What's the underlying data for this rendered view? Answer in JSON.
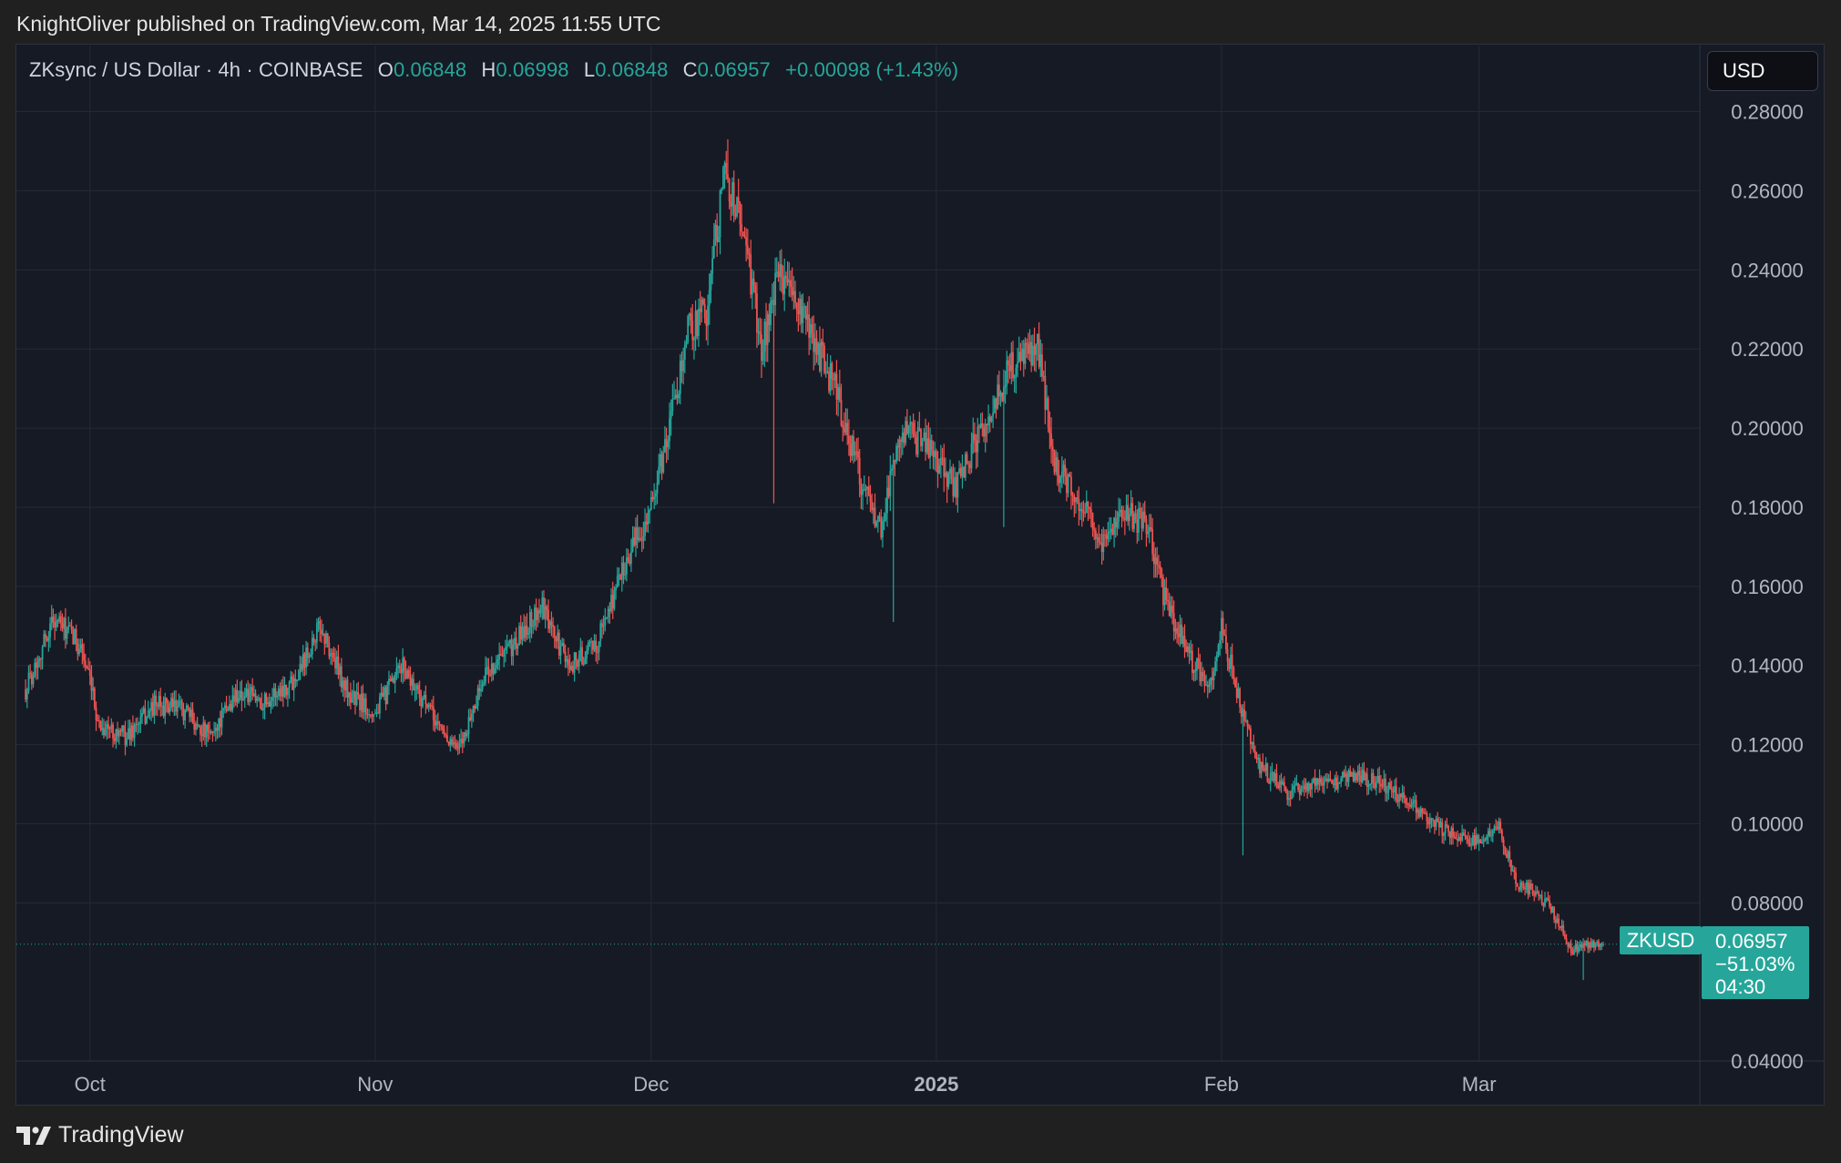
{
  "header": {
    "published_text": "KnightOliver published on TradingView.com, Mar 14, 2025 11:55 UTC"
  },
  "legend": {
    "symbol_text": "ZKsync / US Dollar · 4h · COINBASE",
    "open_key": "O",
    "open": "0.06848",
    "high_key": "H",
    "high": "0.06998",
    "low_key": "L",
    "low": "0.06848",
    "close_key": "C",
    "close": "0.06957",
    "change": "+0.00098 (+1.43%)"
  },
  "currency_button": "USD",
  "last_price": {
    "symbol": "ZKUSD",
    "price": "0.06957",
    "change_pct": "−51.03%",
    "countdown": "04:30"
  },
  "footer": {
    "brand": "TradingView"
  },
  "colors": {
    "up": "#26a69a",
    "down": "#ef5350",
    "background": "#161a25",
    "grid": "#242a35",
    "text": "#b2b5be"
  },
  "chart_data": {
    "type": "candlestick",
    "timeframe": "4h",
    "y_ticks": [
      "0.28000",
      "0.26000",
      "0.24000",
      "0.22000",
      "0.20000",
      "0.18000",
      "0.16000",
      "0.14000",
      "0.12000",
      "0.10000",
      "0.08000",
      "0.04000"
    ],
    "x_ticks": [
      "Oct",
      "Nov",
      "Dec",
      "2025",
      "Feb",
      "Mar"
    ],
    "x_tick_dates": [
      "2024-10-01",
      "2024-11-01",
      "2024-12-01",
      "2025-01-01",
      "2025-02-01",
      "2025-03-01"
    ],
    "x_range": [
      "2024-09-23",
      "2025-03-25"
    ],
    "ylim": [
      0.0405,
      0.2845
    ],
    "approximate_price_path": [
      {
        "date": "2024-09-24",
        "price": 0.134
      },
      {
        "date": "2024-09-27",
        "price": 0.152
      },
      {
        "date": "2024-09-30",
        "price": 0.145
      },
      {
        "date": "2024-10-02",
        "price": 0.125
      },
      {
        "date": "2024-10-05",
        "price": 0.122
      },
      {
        "date": "2024-10-08",
        "price": 0.13
      },
      {
        "date": "2024-10-11",
        "price": 0.129
      },
      {
        "date": "2024-10-14",
        "price": 0.122
      },
      {
        "date": "2024-10-17",
        "price": 0.133
      },
      {
        "date": "2024-10-20",
        "price": 0.131
      },
      {
        "date": "2024-10-23",
        "price": 0.136
      },
      {
        "date": "2024-10-26",
        "price": 0.15
      },
      {
        "date": "2024-10-29",
        "price": 0.133
      },
      {
        "date": "2024-11-01",
        "price": 0.128
      },
      {
        "date": "2024-11-04",
        "price": 0.14
      },
      {
        "date": "2024-11-07",
        "price": 0.128
      },
      {
        "date": "2024-11-10",
        "price": 0.118
      },
      {
        "date": "2024-11-13",
        "price": 0.138
      },
      {
        "date": "2024-11-16",
        "price": 0.145
      },
      {
        "date": "2024-11-19",
        "price": 0.155
      },
      {
        "date": "2024-11-22",
        "price": 0.14
      },
      {
        "date": "2024-11-25",
        "price": 0.145
      },
      {
        "date": "2024-11-28",
        "price": 0.165
      },
      {
        "date": "2024-12-01",
        "price": 0.18
      },
      {
        "date": "2024-12-03",
        "price": 0.2
      },
      {
        "date": "2024-12-05",
        "price": 0.225
      },
      {
        "date": "2024-12-07",
        "price": 0.23
      },
      {
        "date": "2024-12-09",
        "price": 0.265
      },
      {
        "date": "2024-12-11",
        "price": 0.25
      },
      {
        "date": "2024-12-13",
        "price": 0.22
      },
      {
        "date": "2024-12-15",
        "price": 0.24
      },
      {
        "date": "2024-12-18",
        "price": 0.225
      },
      {
        "date": "2024-12-21",
        "price": 0.21
      },
      {
        "date": "2024-12-24",
        "price": 0.185
      },
      {
        "date": "2024-12-26",
        "price": 0.175
      },
      {
        "date": "2024-12-28",
        "price": 0.2
      },
      {
        "date": "2024-12-31",
        "price": 0.195
      },
      {
        "date": "2025-01-03",
        "price": 0.185
      },
      {
        "date": "2025-01-06",
        "price": 0.2
      },
      {
        "date": "2025-01-09",
        "price": 0.215
      },
      {
        "date": "2025-01-12",
        "price": 0.22
      },
      {
        "date": "2025-01-14",
        "price": 0.19
      },
      {
        "date": "2025-01-17",
        "price": 0.18
      },
      {
        "date": "2025-01-19",
        "price": 0.17
      },
      {
        "date": "2025-01-21",
        "price": 0.18
      },
      {
        "date": "2025-01-24",
        "price": 0.175
      },
      {
        "date": "2025-01-26",
        "price": 0.155
      },
      {
        "date": "2025-01-29",
        "price": 0.14
      },
      {
        "date": "2025-01-31",
        "price": 0.135
      },
      {
        "date": "2025-02-01",
        "price": 0.15
      },
      {
        "date": "2025-02-03",
        "price": 0.13
      },
      {
        "date": "2025-02-05",
        "price": 0.115
      },
      {
        "date": "2025-02-08",
        "price": 0.108
      },
      {
        "date": "2025-02-12",
        "price": 0.11
      },
      {
        "date": "2025-02-16",
        "price": 0.112
      },
      {
        "date": "2025-02-20",
        "price": 0.108
      },
      {
        "date": "2025-02-24",
        "price": 0.1
      },
      {
        "date": "2025-02-28",
        "price": 0.095
      },
      {
        "date": "2025-03-03",
        "price": 0.1
      },
      {
        "date": "2025-03-05",
        "price": 0.085
      },
      {
        "date": "2025-03-07",
        "price": 0.083
      },
      {
        "date": "2025-03-09",
        "price": 0.078
      },
      {
        "date": "2025-03-11",
        "price": 0.068
      },
      {
        "date": "2025-03-13",
        "price": 0.07
      },
      {
        "date": "2025-03-14",
        "price": 0.06957
      }
    ],
    "extreme_wicks": [
      {
        "date": "2024-12-09",
        "high": 0.273
      },
      {
        "date": "2024-12-14",
        "low": 0.181
      },
      {
        "date": "2024-12-27",
        "low": 0.151
      },
      {
        "date": "2025-01-08",
        "low": 0.175
      },
      {
        "date": "2025-02-03",
        "low": 0.092
      },
      {
        "date": "2025-03-12",
        "low": 0.0605
      }
    ],
    "last_price": 0.06957
  }
}
